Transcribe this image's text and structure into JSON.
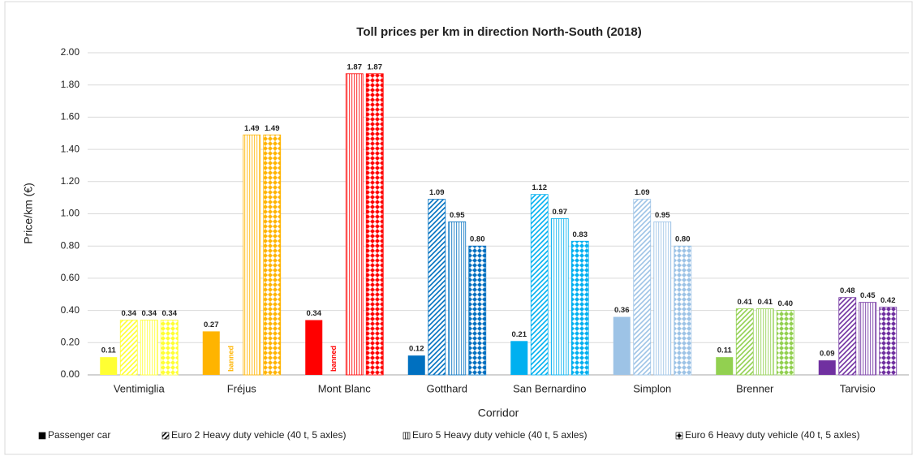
{
  "chart_data": {
    "type": "bar",
    "title": "Toll prices per km in direction North-South (2018)",
    "x_label": "Corridor",
    "y_label": "Price/km (€)",
    "categories": [
      "Ventimiglia",
      "Fréjus",
      "Mont Blanc",
      "Gotthard",
      "San Bernardino",
      "Simplon",
      "Brenner",
      "Tarvisio"
    ],
    "category_colors": [
      "#ffff33",
      "#ffb400",
      "#ff0000",
      "#0070c0",
      "#00b0f0",
      "#9dc3e6",
      "#92d050",
      "#7030a0"
    ],
    "series": [
      {
        "name": "Passenger car",
        "color": "#000000",
        "pattern": "solid",
        "values": [
          0.11,
          0.27,
          0.34,
          0.12,
          0.21,
          0.36,
          0.11,
          0.09
        ],
        "value_labels": [
          "0.11",
          "0.27",
          "0.34",
          "0.12",
          "0.21",
          "0.36",
          "0.11",
          "0.09"
        ]
      },
      {
        "name": "Euro 2 Heavy duty vehicle (40 t, 5 axles)",
        "color": "#000000",
        "pattern": "diagonal",
        "values": [
          0.34,
          null,
          null,
          1.09,
          1.12,
          1.09,
          0.41,
          0.48
        ],
        "value_labels": [
          "0.34",
          "banned",
          "banned",
          "1.09",
          "1.12",
          "1.09",
          "0.41",
          "0.48"
        ]
      },
      {
        "name": "Euro 5 Heavy duty vehicle (40 t, 5 axles)",
        "color": "#000000",
        "pattern": "vertical",
        "values": [
          0.34,
          1.49,
          1.87,
          0.95,
          0.97,
          0.95,
          0.41,
          0.45
        ],
        "value_labels": [
          "0.34",
          "1.49",
          "1.87",
          "0.95",
          "0.97",
          "0.95",
          "0.41",
          "0.45"
        ]
      },
      {
        "name": "Euro 6 Heavy duty vehicle (40 t, 5 axles)",
        "color": "#000000",
        "pattern": "checker",
        "values": [
          0.34,
          1.49,
          1.87,
          0.8,
          0.83,
          0.8,
          0.4,
          0.42
        ],
        "value_labels": [
          "0.34",
          "1.49",
          "1.87",
          "0.80",
          "0.83",
          "0.80",
          "0.40",
          "0.42"
        ]
      }
    ],
    "ylim": [
      0,
      2
    ],
    "yticks": [
      {
        "value": 0,
        "label": "0.00"
      },
      {
        "value": 0.2,
        "label": "0.20"
      },
      {
        "value": 0.4,
        "label": "0.40"
      },
      {
        "value": 0.6,
        "label": "0.60"
      },
      {
        "value": 0.8,
        "label": "0.80"
      },
      {
        "value": 1,
        "label": "1.00"
      },
      {
        "value": 1.2,
        "label": "1.20"
      },
      {
        "value": 1.4,
        "label": "1.40"
      },
      {
        "value": 1.6,
        "label": "1.60"
      },
      {
        "value": 1.8,
        "label": "1.80"
      },
      {
        "value": 2,
        "label": "2.00"
      }
    ],
    "grid": true,
    "legend": "bottom"
  }
}
